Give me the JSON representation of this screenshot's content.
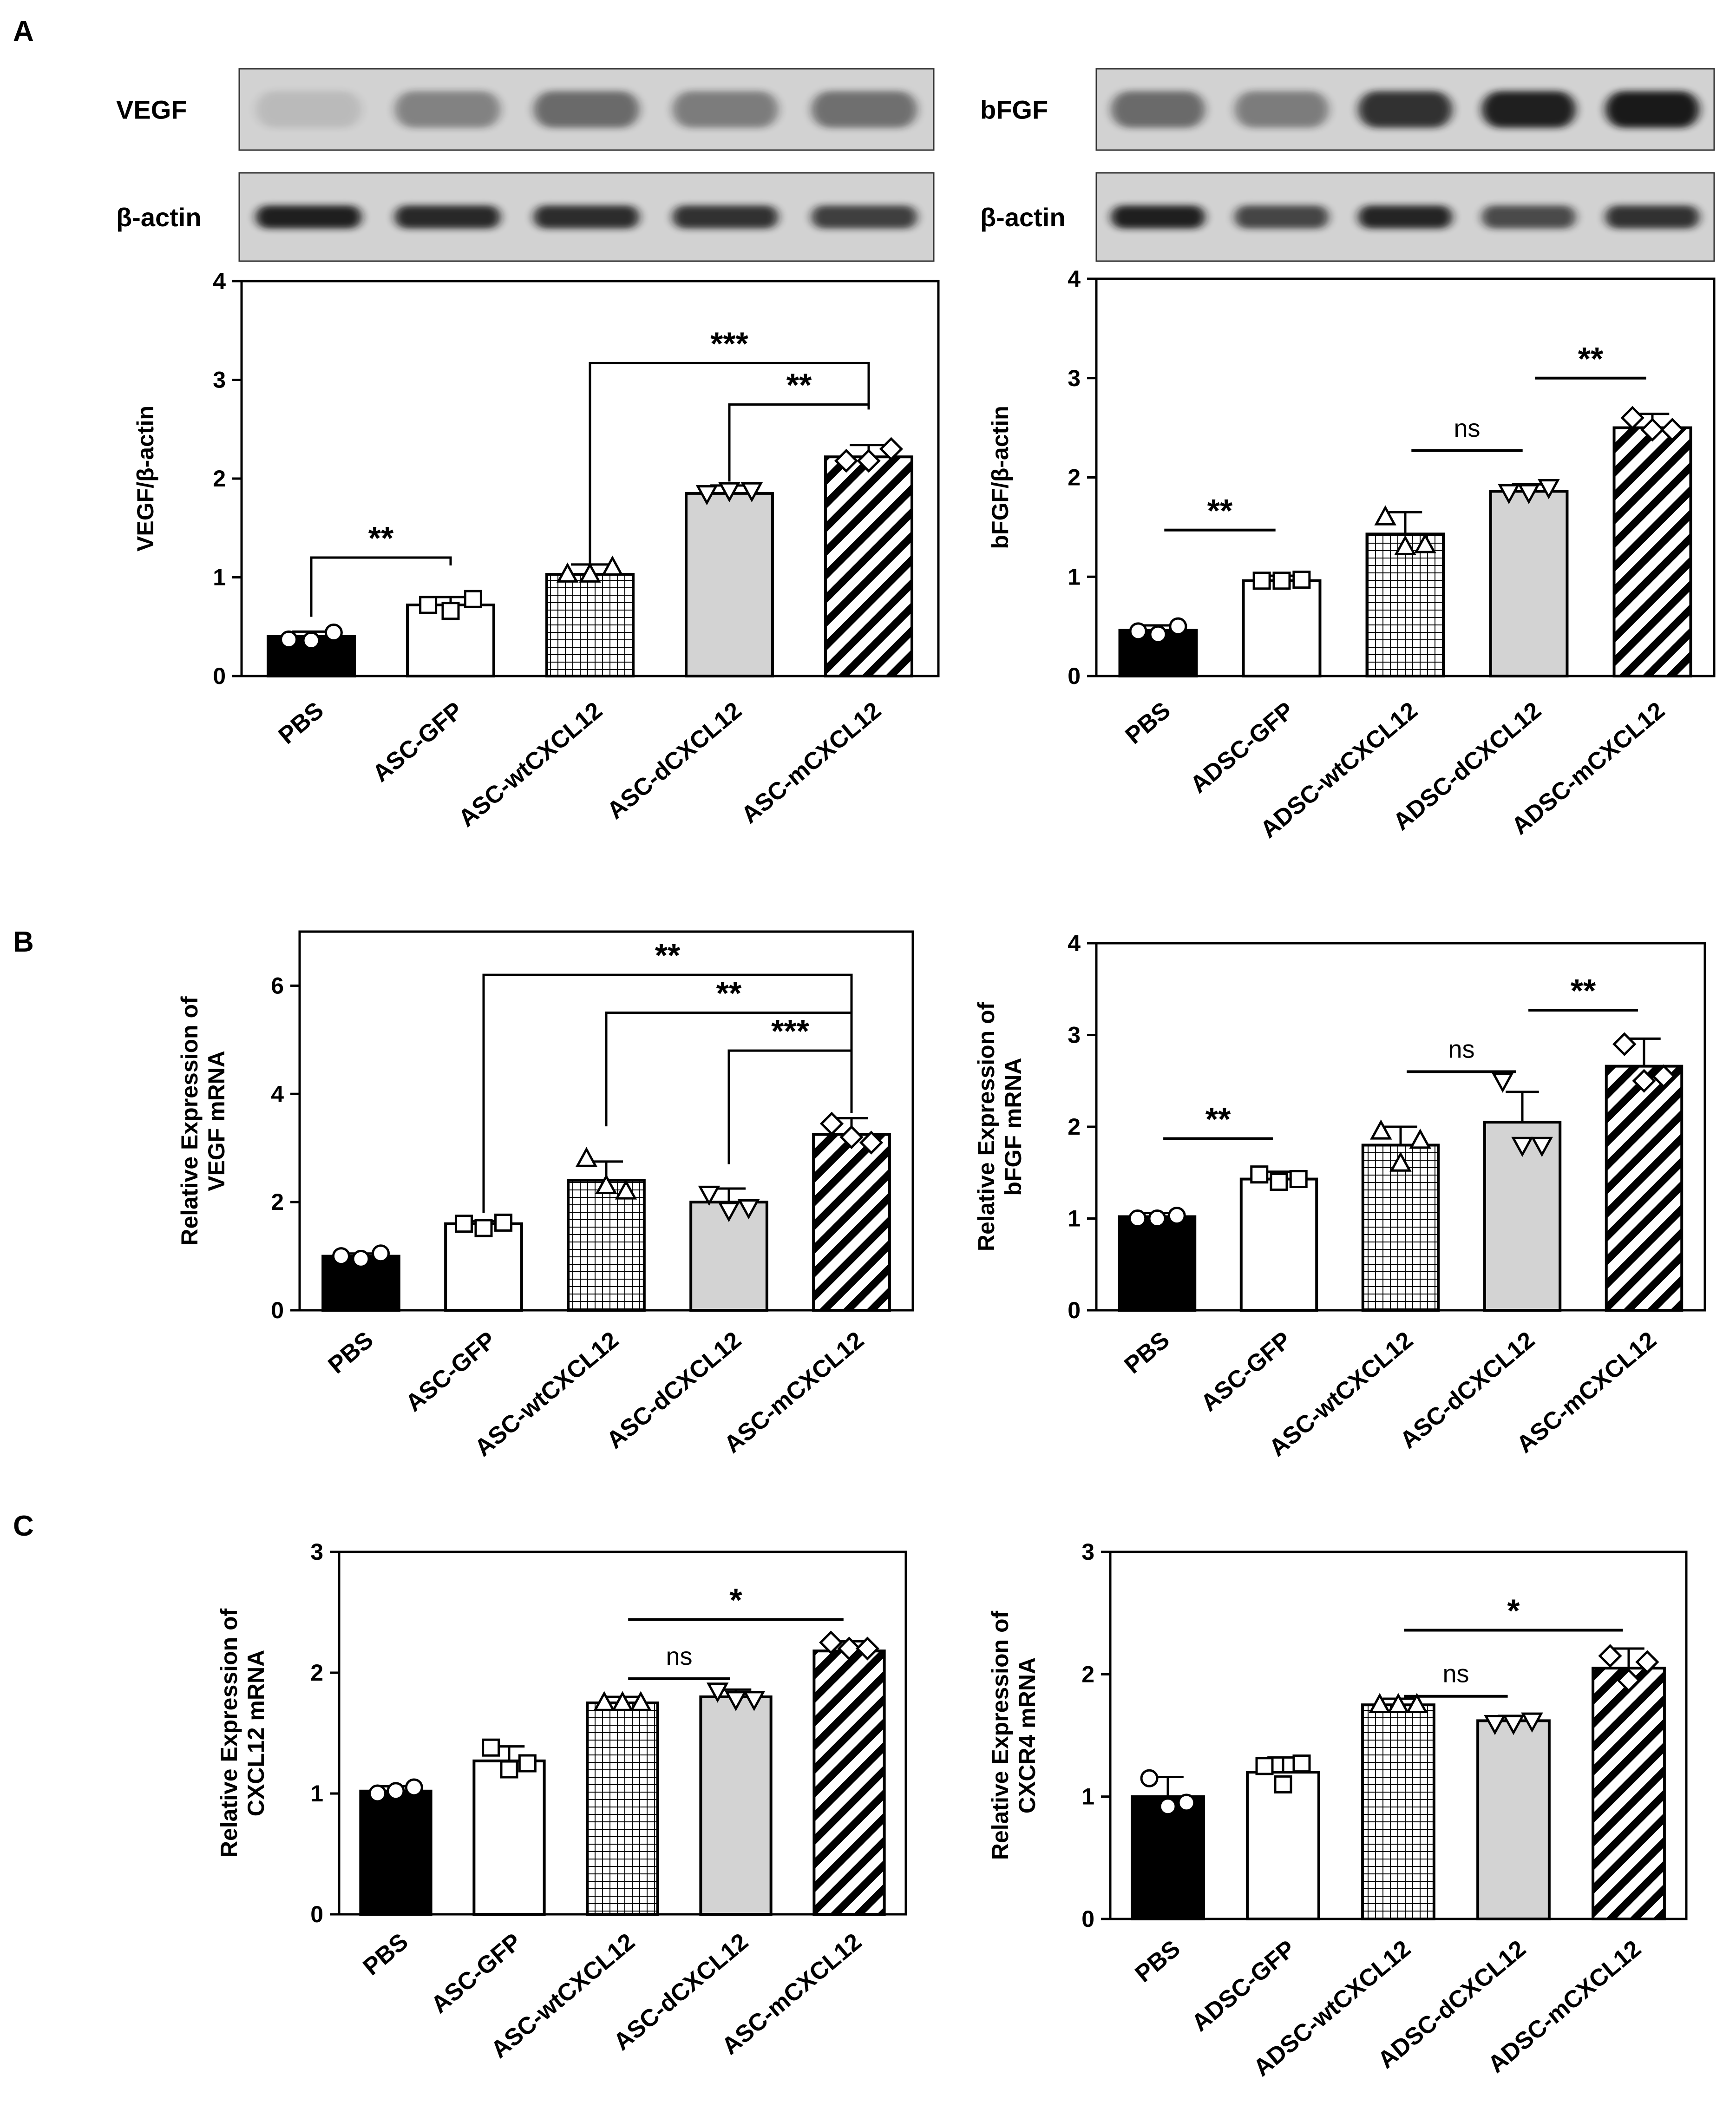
{
  "panel_labels": [
    "A",
    "B",
    "C"
  ],
  "blots": [
    {
      "protein": "VEGF",
      "loading": "β-actin",
      "protein_intensity": [
        0.12,
        0.42,
        0.55,
        0.45,
        0.52
      ],
      "loading_intensity": [
        0.95,
        0.9,
        0.88,
        0.85,
        0.78
      ]
    },
    {
      "protein": "bFGF",
      "loading": "β-actin",
      "protein_intensity": [
        0.55,
        0.45,
        0.85,
        0.95,
        0.98
      ],
      "loading_intensity": [
        0.95,
        0.75,
        0.92,
        0.72,
        0.85
      ]
    }
  ],
  "colors": {
    "black_bar": "#000000",
    "white_bar": "#ffffff",
    "grey_bar": "#d3d3d3",
    "axis": "#000000",
    "blot_bg": "#d2d2d2",
    "blot_band": "#141414"
  },
  "chart_data": [
    {
      "type": "bar",
      "panel": "A",
      "title": "",
      "ylabel": "VEGF/β-actin",
      "ylim": [
        0,
        4
      ],
      "yticks": [
        "0",
        "1",
        "2",
        "3",
        "4"
      ],
      "categories": [
        "PBS",
        "ASC-GFP",
        "ASC-wtCXCL12",
        "ASC-dCXCL12",
        "ASC-mCXCL12"
      ],
      "values": [
        0.4,
        0.72,
        1.03,
        1.85,
        2.22
      ],
      "errors": [
        0.05,
        0.08,
        0.1,
        0.08,
        0.12
      ],
      "points": [
        [
          0.37,
          0.36,
          0.44
        ],
        [
          0.72,
          0.66,
          0.78
        ],
        [
          1.03,
          1.03,
          1.1
        ],
        [
          1.85,
          1.88,
          1.88
        ],
        [
          2.18,
          2.18,
          2.3
        ]
      ],
      "brackets": [
        {
          "from": 0,
          "to": 1,
          "label": "**",
          "style": "bracket",
          "level": 1.2,
          "left_drop": 0.6,
          "right_drop": 1.12
        },
        {
          "from": 2,
          "to": 4,
          "label": "***",
          "style": "bracket",
          "level": 3.17,
          "left_drop": 1.12,
          "right_drop": 2.7
        },
        {
          "from": 3,
          "to": 4,
          "label": "**",
          "style": "bracket",
          "level": 2.75,
          "left_drop": 1.97,
          "right_drop": 2.7
        }
      ]
    },
    {
      "type": "bar",
      "panel": "A",
      "title": "",
      "ylabel": "bFGF/β-actin",
      "ylim": [
        0,
        4
      ],
      "yticks": [
        "0",
        "1",
        "2",
        "3",
        "4"
      ],
      "categories": [
        "PBS",
        "ADSC-GFP",
        "ADSC-wtCXCL12",
        "ADSC-dCXCL12",
        "ADSC-mCXCL12"
      ],
      "values": [
        0.46,
        0.96,
        1.43,
        1.86,
        2.5
      ],
      "errors": [
        0.05,
        0.05,
        0.22,
        0.07,
        0.14
      ],
      "points": [
        [
          0.45,
          0.42,
          0.5
        ],
        [
          0.96,
          0.96,
          0.97
        ],
        [
          1.6,
          1.3,
          1.32
        ],
        [
          1.85,
          1.85,
          1.9
        ],
        [
          2.6,
          2.48,
          2.48
        ]
      ],
      "brackets": [
        {
          "from": 0,
          "to": 1,
          "label": "**",
          "style": "line",
          "level": 1.47
        },
        {
          "from": 2,
          "to": 3,
          "label": "ns",
          "style": "line",
          "level": 2.27
        },
        {
          "from": 3,
          "to": 4,
          "label": "**",
          "style": "line",
          "level": 3.0
        }
      ]
    },
    {
      "type": "bar",
      "panel": "B",
      "title": "",
      "ylabel": "Relative Expression of VEGF mRNA",
      "ylim": [
        0,
        7
      ],
      "yticks": [
        "0",
        "2",
        "4",
        "6"
      ],
      "categories": [
        "PBS",
        "ASC-GFP",
        "ASC-wtCXCL12",
        "ASC-dCXCL12",
        "ASC-mCXCL12"
      ],
      "values": [
        1.0,
        1.6,
        2.4,
        2.0,
        3.25
      ],
      "errors": [
        0.05,
        0.05,
        0.35,
        0.25,
        0.3
      ],
      "points": [
        [
          1.0,
          0.95,
          1.05
        ],
        [
          1.6,
          1.52,
          1.62
        ],
        [
          2.8,
          2.3,
          2.2
        ],
        [
          2.15,
          1.85,
          1.9
        ],
        [
          3.45,
          3.2,
          3.1
        ]
      ],
      "brackets": [
        {
          "from": 1,
          "to": 4,
          "label": "**",
          "style": "bracket",
          "level": 6.2,
          "left_drop": 1.8,
          "right_drop": 3.65
        },
        {
          "from": 2,
          "to": 4,
          "label": "**",
          "style": "bracket",
          "level": 5.5,
          "left_drop": 3.4,
          "right_drop": 3.65
        },
        {
          "from": 3,
          "to": 4,
          "label": "***",
          "style": "bracket",
          "level": 4.8,
          "left_drop": 2.7,
          "right_drop": 3.65
        }
      ]
    },
    {
      "type": "bar",
      "panel": "B",
      "title": "",
      "ylabel": "Relative Expression of bFGF mRNA",
      "ylim": [
        0,
        4
      ],
      "yticks": [
        "0",
        "1",
        "2",
        "3",
        "4"
      ],
      "categories": [
        "PBS",
        "ASC-GFP",
        "ASC-wtCXCL12",
        "ASC-dCXCL12",
        "ASC-mCXCL12"
      ],
      "values": [
        1.02,
        1.43,
        1.8,
        2.05,
        2.66
      ],
      "errors": [
        0.04,
        0.08,
        0.2,
        0.33,
        0.3
      ],
      "points": [
        [
          1.0,
          1.0,
          1.03
        ],
        [
          1.48,
          1.4,
          1.43
        ],
        [
          1.95,
          1.6,
          1.85
        ],
        [
          2.5,
          1.8,
          1.8
        ],
        [
          2.9,
          2.5,
          2.55
        ]
      ],
      "brackets": [
        {
          "from": 0,
          "to": 1,
          "label": "**",
          "style": "line",
          "level": 1.87
        },
        {
          "from": 2,
          "to": 3,
          "label": "ns",
          "style": "line",
          "level": 2.6
        },
        {
          "from": 3,
          "to": 4,
          "label": "**",
          "style": "line",
          "level": 3.27
        }
      ]
    },
    {
      "type": "bar",
      "panel": "C",
      "title": "",
      "ylabel": "Relative Expression of CXCL12 mRNA",
      "ylim": [
        0,
        3
      ],
      "yticks": [
        "0",
        "1",
        "2",
        "3"
      ],
      "categories": [
        "PBS",
        "ASC-GFP",
        "ASC-wtCXCL12",
        "ASC-dCXCL12",
        "ASC-mCXCL12"
      ],
      "values": [
        1.02,
        1.27,
        1.75,
        1.8,
        2.18
      ],
      "errors": [
        0.04,
        0.12,
        0.05,
        0.06,
        0.08
      ],
      "points": [
        [
          1.0,
          1.02,
          1.05
        ],
        [
          1.38,
          1.2,
          1.25
        ],
        [
          1.75,
          1.75,
          1.75
        ],
        [
          1.85,
          1.78,
          1.78
        ],
        [
          2.25,
          2.2,
          2.2
        ]
      ],
      "brackets": [
        {
          "from": 2,
          "to": 3,
          "label": "ns",
          "style": "line",
          "level": 1.95
        },
        {
          "from": 2,
          "to": 4,
          "label": "*",
          "style": "line",
          "level": 2.44
        }
      ]
    },
    {
      "type": "bar",
      "panel": "C",
      "title": "",
      "ylabel": "Relative Expression of CXCR4 mRNA",
      "ylim": [
        0,
        3
      ],
      "yticks": [
        "0",
        "1",
        "2",
        "3"
      ],
      "categories": [
        "PBS",
        "ADSC-GFP",
        "ADSC-wtCXCL12",
        "ADSC-dCXCL12",
        "ADSC-mCXCL12"
      ],
      "values": [
        1.0,
        1.2,
        1.75,
        1.62,
        2.05
      ],
      "errors": [
        0.16,
        0.12,
        0.05,
        0.04,
        0.16
      ],
      "points": [
        [
          1.15,
          0.92,
          0.95
        ],
        [
          1.25,
          1.1,
          1.27
        ],
        [
          1.75,
          1.75,
          1.75
        ],
        [
          1.6,
          1.6,
          1.62
        ],
        [
          2.15,
          1.95,
          2.1
        ]
      ],
      "brackets": [
        {
          "from": 2,
          "to": 3,
          "label": "ns",
          "style": "line",
          "level": 1.82
        },
        {
          "from": 2,
          "to": 4,
          "label": "*",
          "style": "line",
          "level": 2.36
        }
      ]
    }
  ]
}
